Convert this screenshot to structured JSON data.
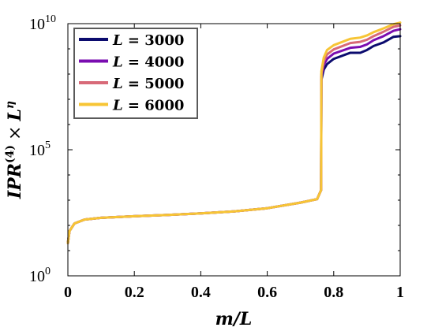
{
  "chart_data": {
    "type": "line",
    "xlabel": "m/L",
    "ylabel": "IPR(4) × L^η",
    "ylabel_parts": {
      "base": "IPR",
      "superscript": "(4)",
      "times": "×",
      "L": "L",
      "eta": "η"
    },
    "xlim": [
      0,
      1
    ],
    "ylim": [
      1,
      10000000000
    ],
    "yscale": "log",
    "xticks": [
      "0",
      "0.2",
      "0.4",
      "0.6",
      "0.8",
      "1"
    ],
    "xtick_values": [
      0,
      0.2,
      0.4,
      0.6,
      0.8,
      1
    ],
    "yticks": [
      {
        "value": 1,
        "base": "10",
        "exp": "0"
      },
      {
        "value": 100000,
        "base": "10",
        "exp": "5"
      },
      {
        "value": 10000000000,
        "base": "10",
        "exp": "10"
      }
    ],
    "grid": false,
    "legend_position": "top-left",
    "series": [
      {
        "name": "L = 3000",
        "color": "#0b0b6e",
        "points": [
          [
            0,
            20
          ],
          [
            0.005,
            60
          ],
          [
            0.02,
            120
          ],
          [
            0.05,
            170
          ],
          [
            0.1,
            200
          ],
          [
            0.2,
            230
          ],
          [
            0.3,
            260
          ],
          [
            0.4,
            300
          ],
          [
            0.5,
            360
          ],
          [
            0.6,
            480
          ],
          [
            0.7,
            800
          ],
          [
            0.75,
            1100
          ],
          [
            0.762,
            2500
          ],
          [
            0.763,
            60000000
          ],
          [
            0.77,
            150000000
          ],
          [
            0.78,
            250000000
          ],
          [
            0.8,
            400000000
          ],
          [
            0.85,
            700000000
          ],
          [
            0.88,
            700000000
          ],
          [
            0.9,
            900000000
          ],
          [
            0.92,
            1300000000
          ],
          [
            0.95,
            1800000000
          ],
          [
            0.98,
            3000000000
          ],
          [
            1,
            3200000000
          ]
        ]
      },
      {
        "name": "L = 4000",
        "color": "#7a0db0",
        "points": [
          [
            0,
            20
          ],
          [
            0.005,
            60
          ],
          [
            0.02,
            120
          ],
          [
            0.05,
            170
          ],
          [
            0.1,
            200
          ],
          [
            0.2,
            230
          ],
          [
            0.3,
            260
          ],
          [
            0.4,
            300
          ],
          [
            0.5,
            360
          ],
          [
            0.6,
            480
          ],
          [
            0.7,
            800
          ],
          [
            0.75,
            1100
          ],
          [
            0.762,
            2500
          ],
          [
            0.763,
            80000000
          ],
          [
            0.77,
            230000000
          ],
          [
            0.78,
            400000000
          ],
          [
            0.8,
            650000000
          ],
          [
            0.85,
            1100000000
          ],
          [
            0.88,
            1200000000
          ],
          [
            0.9,
            1500000000
          ],
          [
            0.92,
            2200000000
          ],
          [
            0.95,
            3200000000
          ],
          [
            0.98,
            5200000000
          ],
          [
            1,
            6000000000
          ]
        ]
      },
      {
        "name": "L = 5000",
        "color": "#d86a78",
        "points": [
          [
            0,
            20
          ],
          [
            0.005,
            60
          ],
          [
            0.02,
            120
          ],
          [
            0.05,
            170
          ],
          [
            0.1,
            200
          ],
          [
            0.2,
            230
          ],
          [
            0.3,
            260
          ],
          [
            0.4,
            300
          ],
          [
            0.5,
            360
          ],
          [
            0.6,
            480
          ],
          [
            0.7,
            800
          ],
          [
            0.75,
            1100
          ],
          [
            0.762,
            2500
          ],
          [
            0.763,
            100000000
          ],
          [
            0.77,
            320000000
          ],
          [
            0.78,
            600000000
          ],
          [
            0.8,
            950000000
          ],
          [
            0.85,
            1700000000
          ],
          [
            0.88,
            1900000000
          ],
          [
            0.9,
            2300000000
          ],
          [
            0.92,
            3200000000
          ],
          [
            0.95,
            4800000000
          ],
          [
            0.98,
            7500000000
          ],
          [
            1,
            8500000000
          ]
        ]
      },
      {
        "name": "L = 6000",
        "color": "#f7c535",
        "points": [
          [
            0,
            20
          ],
          [
            0.005,
            60
          ],
          [
            0.02,
            120
          ],
          [
            0.05,
            170
          ],
          [
            0.1,
            200
          ],
          [
            0.2,
            230
          ],
          [
            0.3,
            260
          ],
          [
            0.4,
            300
          ],
          [
            0.5,
            360
          ],
          [
            0.6,
            480
          ],
          [
            0.7,
            800
          ],
          [
            0.75,
            1100
          ],
          [
            0.762,
            2500
          ],
          [
            0.763,
            130000000
          ],
          [
            0.77,
            450000000
          ],
          [
            0.78,
            900000000
          ],
          [
            0.8,
            1400000000
          ],
          [
            0.85,
            2500000000
          ],
          [
            0.88,
            2800000000
          ],
          [
            0.9,
            3400000000
          ],
          [
            0.92,
            4600000000
          ],
          [
            0.95,
            6500000000
          ],
          [
            0.98,
            9500000000
          ],
          [
            1,
            11000000000
          ]
        ]
      }
    ]
  },
  "legend": {
    "entries": [
      {
        "L": "L",
        "eq": " = ",
        "value": "3000",
        "color": "#0b0b6e"
      },
      {
        "L": "L",
        "eq": " = ",
        "value": "4000",
        "color": "#7a0db0"
      },
      {
        "L": "L",
        "eq": " = ",
        "value": "5000",
        "color": "#d86a78"
      },
      {
        "L": "L",
        "eq": " = ",
        "value": "6000",
        "color": "#f7c535"
      }
    ]
  }
}
